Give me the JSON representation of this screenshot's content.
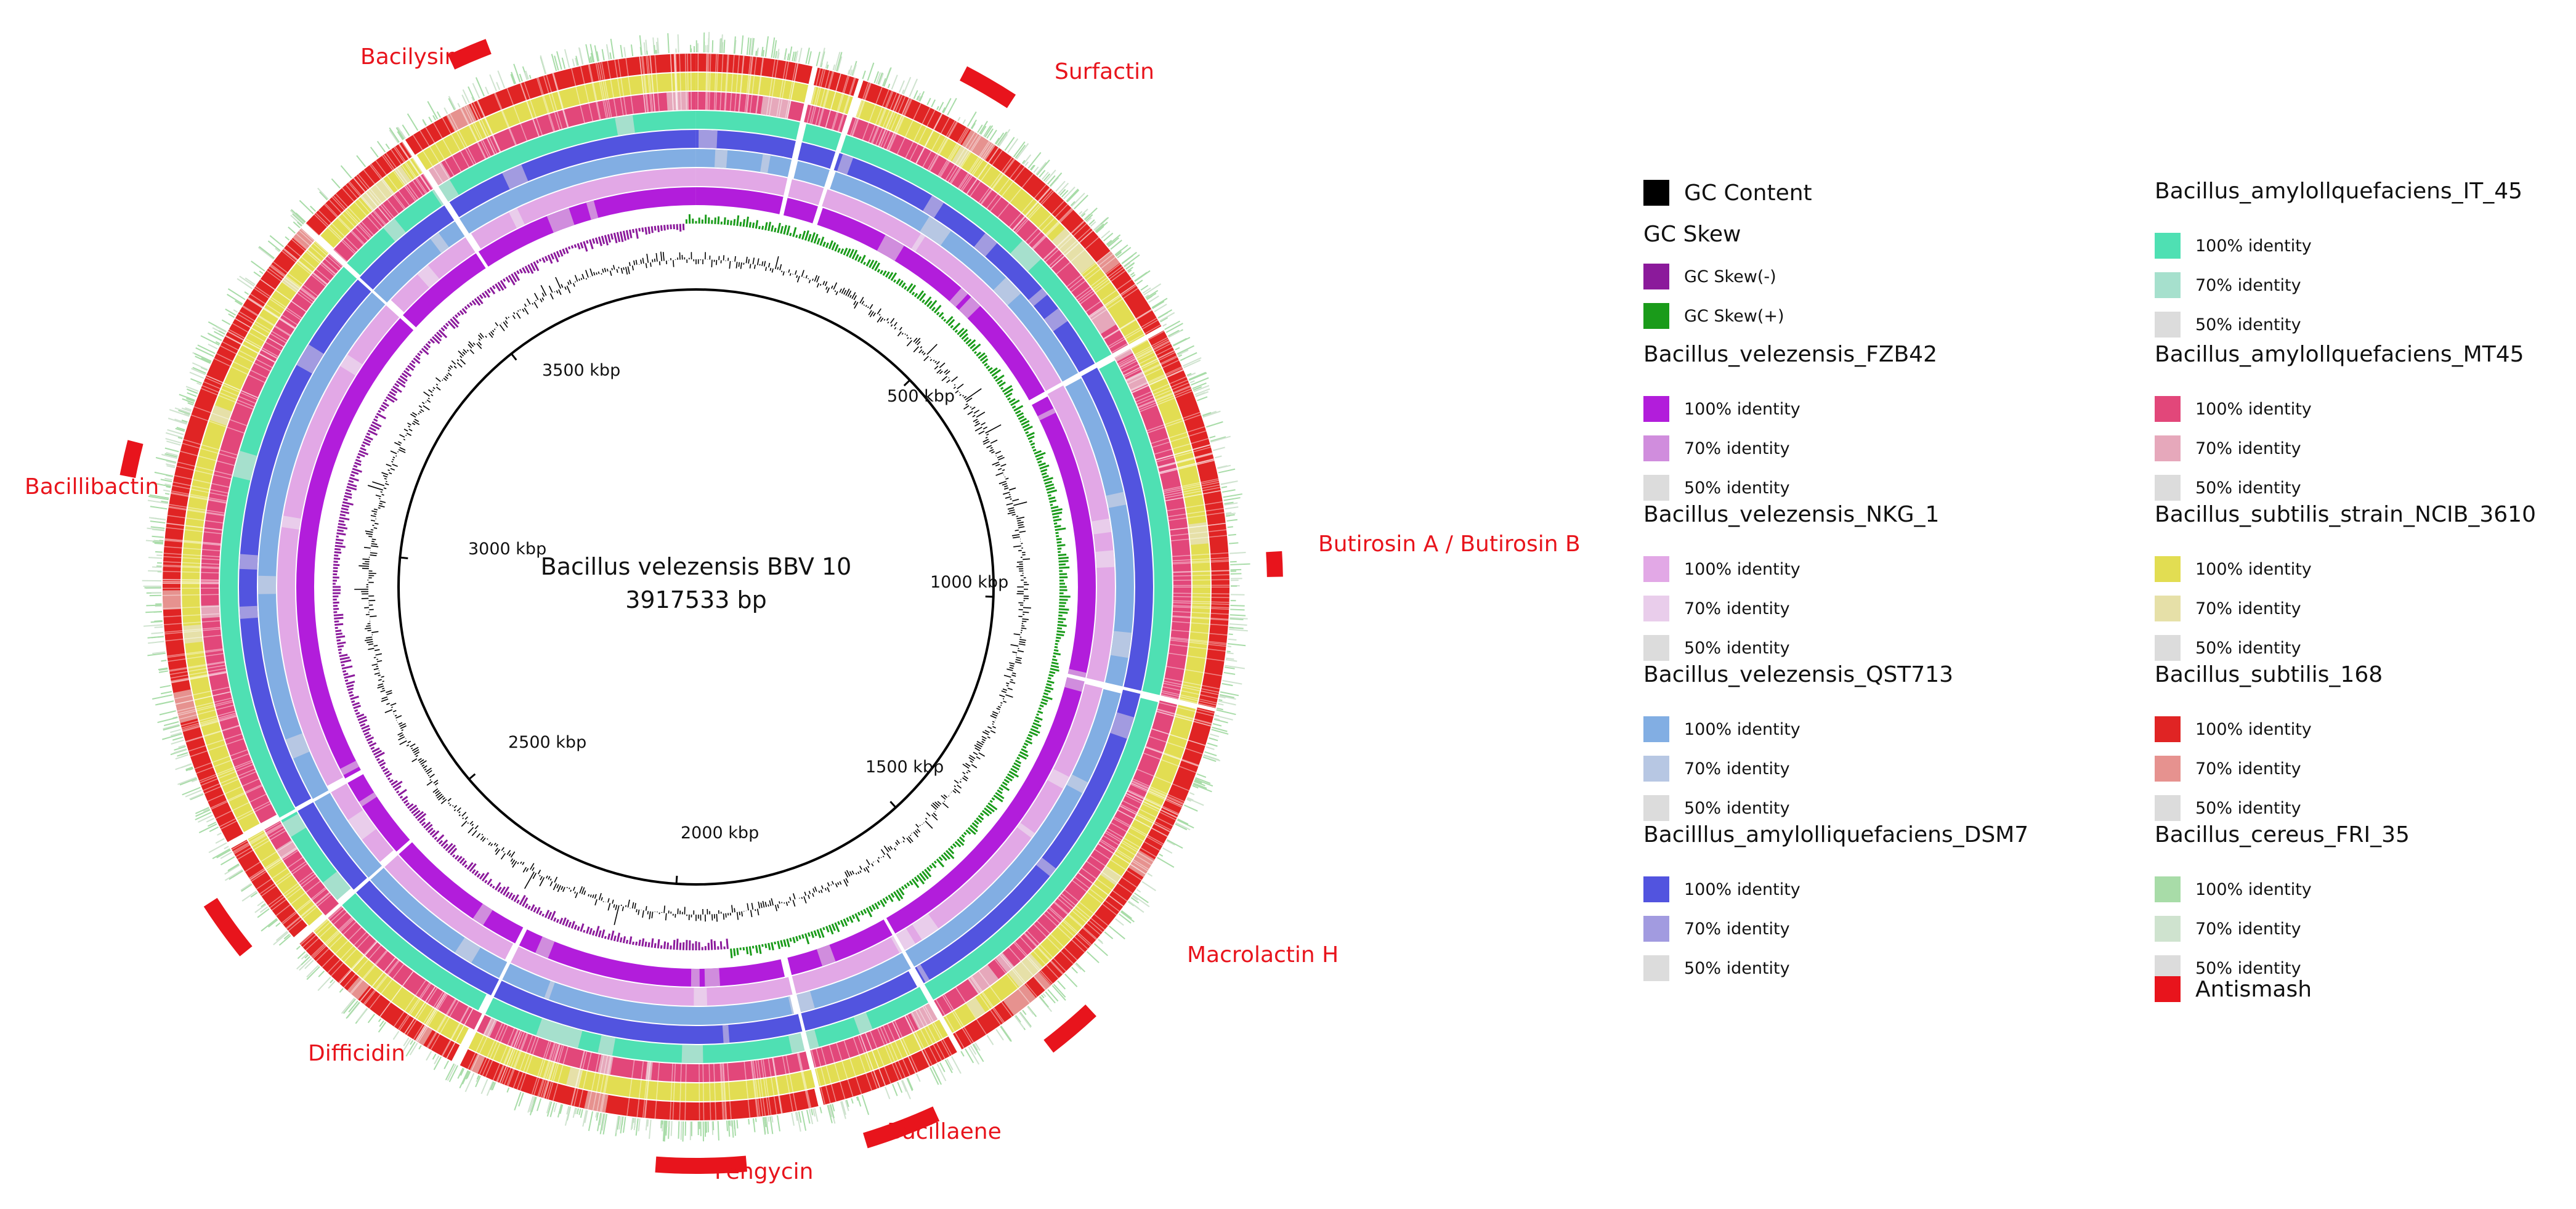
{
  "genome": {
    "name": "Bacillus velezensis BBV 10",
    "length_label": "3917533 bp",
    "length_bp": 3917533
  },
  "ticks": [
    {
      "label": "500 kbp",
      "kbp": 500
    },
    {
      "label": "1000 kbp",
      "kbp": 1000
    },
    {
      "label": "1500 kbp",
      "kbp": 1500
    },
    {
      "label": "2000 kbp",
      "kbp": 2000
    },
    {
      "label": "2500 kbp",
      "kbp": 2500
    },
    {
      "label": "3000 kbp",
      "kbp": 3000
    },
    {
      "label": "3500 kbp",
      "kbp": 3500
    }
  ],
  "clusters": [
    {
      "name": "Surfactin"
    },
    {
      "name": "Butirosin A / Butirosin B"
    },
    {
      "name": "Macrolactin H"
    },
    {
      "name": "Bacillaene"
    },
    {
      "name": "Fengycin"
    },
    {
      "name": "Difficidin"
    },
    {
      "name": "Bacillibactin"
    },
    {
      "name": "Bacilysin"
    }
  ],
  "colors": {
    "antismash": "#e8141c",
    "gc_content": "#000000",
    "gc_skew_neg": "#8b1a9b",
    "gc_skew_pos": "#1a9b1a"
  },
  "legend": {
    "gc_content": "GC Content",
    "gc_skew": "GC Skew",
    "gc_skew_neg": "GC Skew(-)",
    "gc_skew_pos": "GC Skew(+)",
    "antismash": "Antismash",
    "identity_labels": [
      "100% identity",
      "70% identity",
      "50% identity"
    ],
    "strains": [
      {
        "name": "Bacillus_velezensis_FZB42",
        "colors": [
          "#b21ddb",
          "#d08ddd",
          "#dcdcdc"
        ]
      },
      {
        "name": "Bacillus_velezensis_NKG_1",
        "colors": [
          "#e2a8e6",
          "#e9cdeb",
          "#dcdcdc"
        ]
      },
      {
        "name": "Bacillus_velezensis_QST713",
        "colors": [
          "#82aee3",
          "#b7c7e3",
          "#dcdcdc"
        ]
      },
      {
        "name": "Bacilllus_amylolliquefaciens_DSM7",
        "colors": [
          "#5254df",
          "#a29be0",
          "#dcdcdc"
        ]
      },
      {
        "name": "Bacillus_amylollquefaciens_IT_45",
        "colors": [
          "#4fe0b3",
          "#a6e0cd",
          "#dcdcdc"
        ]
      },
      {
        "name": "Bacillus_amylollquefaciens_MT45",
        "colors": [
          "#e2477a",
          "#e6a8bb",
          "#dcdcdc"
        ]
      },
      {
        "name": "Bacillus_subtilis_strain_NCIB_3610",
        "colors": [
          "#e2dd52",
          "#e6e0a8",
          "#dcdcdc"
        ]
      },
      {
        "name": "Bacillus_subtilis_168",
        "colors": [
          "#e02424",
          "#e6928f",
          "#dcdcdc"
        ]
      },
      {
        "name": "Bacillus_cereus_FRI_35",
        "colors": [
          "#a8dca8",
          "#cfe3cf",
          "#dcdcdc"
        ]
      }
    ]
  }
}
